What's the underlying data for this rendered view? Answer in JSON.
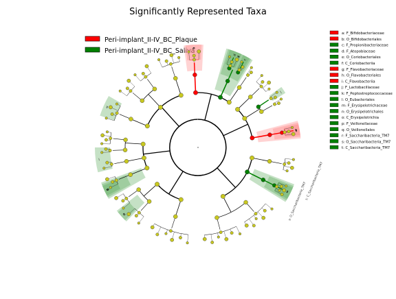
{
  "chart_data": {
    "type": "cladogram",
    "title": "Significantly Represented Taxa",
    "groups": [
      {
        "name": "Peri-implant_II-IV_BC_Plaque",
        "color": "#ff0000"
      },
      {
        "name": "Peri-implant_II-IV_BC_Saliva",
        "color": "#008000"
      }
    ],
    "taxa": [
      {
        "key": "a",
        "label": "a: F_Bifidobacteriaceae",
        "group": 0
      },
      {
        "key": "b",
        "label": "b: O_Bifidobacteriales",
        "group": 0
      },
      {
        "key": "c",
        "label": "c: F_Propionibacteriaceae",
        "group": 1
      },
      {
        "key": "d",
        "label": "d: F_Atopobiaceae",
        "group": 1
      },
      {
        "key": "e",
        "label": "e: O_Coriobacteriales",
        "group": 1
      },
      {
        "key": "f",
        "label": "f: C_Coriobacteriia",
        "group": 1
      },
      {
        "key": "g",
        "label": "g: F_Flavobacteriaceae",
        "group": 0
      },
      {
        "key": "h",
        "label": "h: O_Flavobacteriales",
        "group": 0
      },
      {
        "key": "i",
        "label": "i: C_Flavobacteriia",
        "group": 0
      },
      {
        "key": "j",
        "label": "j: F_Lactobacillaceae",
        "group": 1
      },
      {
        "key": "k",
        "label": "k: F_Peptostreptococcaceae",
        "group": 1
      },
      {
        "key": "l",
        "label": "l: O_Eubacteriales",
        "group": 1
      },
      {
        "key": "m",
        "label": "m: F_Erysipelotrichaceae",
        "group": 1
      },
      {
        "key": "n",
        "label": "n: O_Erysipelotrichales",
        "group": 1
      },
      {
        "key": "o",
        "label": "o: C_Erysipelotrichia",
        "group": 1
      },
      {
        "key": "p",
        "label": "p: F_Veillonellaceae",
        "group": 1
      },
      {
        "key": "q",
        "label": "q: O_Veillonellales",
        "group": 1
      },
      {
        "key": "r",
        "label": "r: F_Saccharibacteria_TM7",
        "group": 1
      },
      {
        "key": "s",
        "label": "s: O_Saccharibacteria_TM7",
        "group": 1
      },
      {
        "key": "t",
        "label": "t: C_Saccharibacteria_TM7",
        "group": 1
      }
    ],
    "sectors": [
      {
        "key": "a",
        "group": 0,
        "angle_start": -7,
        "angle_end": 2,
        "ring": "outer"
      },
      {
        "key": "b",
        "group": 0,
        "angle_start": -8,
        "angle_end": 3,
        "ring": "mid"
      },
      {
        "key": "c",
        "group": 1,
        "angle_start": 26,
        "angle_end": 30,
        "ring": "outer"
      },
      {
        "key": "d",
        "group": 1,
        "angle_start": 18,
        "angle_end": 25,
        "ring": "outer"
      },
      {
        "key": "e",
        "group": 1,
        "angle_start": 17,
        "angle_end": 31,
        "ring": "mid"
      },
      {
        "key": "f",
        "group": 1,
        "angle_start": 16,
        "angle_end": 32,
        "ring": "inner"
      },
      {
        "key": "g",
        "group": 0,
        "angle_start": 77,
        "angle_end": 83,
        "ring": "outer"
      },
      {
        "key": "h",
        "group": 0,
        "angle_start": 76,
        "angle_end": 84,
        "ring": "mid"
      },
      {
        "key": "i",
        "group": 0,
        "angle_start": 75,
        "angle_end": 85,
        "ring": "inner"
      },
      {
        "key": "j",
        "group": 1,
        "angle_start": 54,
        "angle_end": 58,
        "ring": "outer"
      },
      {
        "key": "k",
        "group": 1,
        "angle_start": -72,
        "angle_end": -60,
        "ring": "outer"
      },
      {
        "key": "l",
        "group": 1,
        "angle_start": -104,
        "angle_end": -90,
        "ring": "outer"
      },
      {
        "key": "m",
        "group": 1,
        "angle_start": -118,
        "angle_end": -112,
        "ring": "outer"
      },
      {
        "key": "n",
        "group": 1,
        "angle_start": -119,
        "angle_end": -111,
        "ring": "mid"
      },
      {
        "key": "o",
        "group": 1,
        "angle_start": -120,
        "angle_end": -110,
        "ring": "inner"
      },
      {
        "key": "p",
        "group": 1,
        "angle_start": -135,
        "angle_end": -129,
        "ring": "outer"
      },
      {
        "key": "q",
        "group": 1,
        "angle_start": -136,
        "angle_end": -128,
        "ring": "mid"
      },
      {
        "key": "r",
        "group": 1,
        "angle_start": 113,
        "angle_end": 120,
        "ring": "outer"
      },
      {
        "key": "s",
        "group": 1,
        "angle_start": 112,
        "angle_end": 121,
        "ring": "mid"
      },
      {
        "key": "t",
        "group": 1,
        "angle_start": 111,
        "angle_end": 122,
        "ring": "inner"
      }
    ],
    "annotations": [
      "t: C_Saccharibacteria_TM7",
      "s: O_Saccharibacteria_TM7"
    ]
  }
}
